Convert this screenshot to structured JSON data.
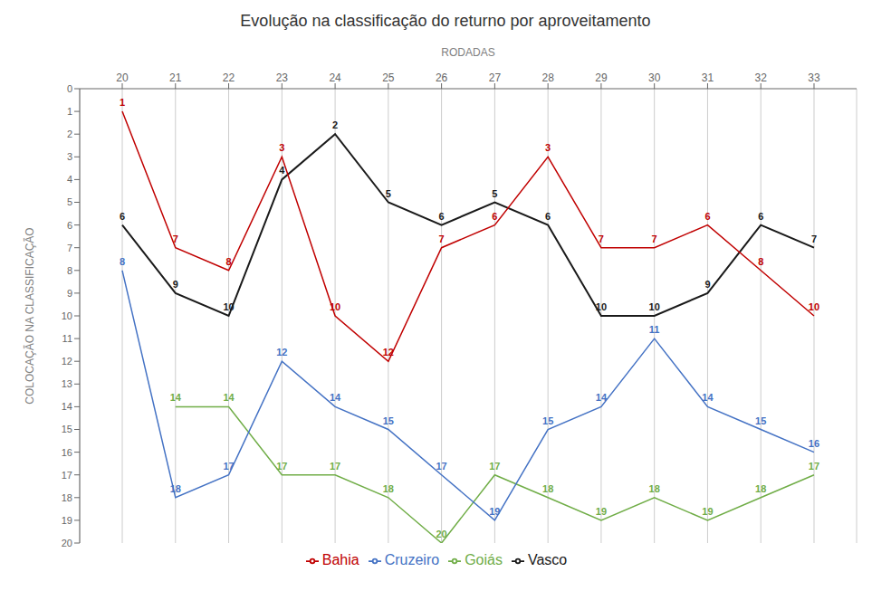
{
  "chart_data": {
    "type": "line",
    "title": "Evolução na classificação do returno por aproveitamento",
    "xlabel": "RODADAS",
    "ylabel": "COLOCAÇÃO NA CLASSIFICAÇÃO",
    "x": [
      20,
      21,
      22,
      23,
      24,
      25,
      26,
      27,
      28,
      29,
      30,
      31,
      32,
      33
    ],
    "series": [
      {
        "name": "Goiás",
        "color": "#70ad47",
        "values": [
          null,
          14,
          14,
          17,
          17,
          18,
          20,
          17,
          18,
          19,
          18,
          19,
          18,
          17
        ]
      },
      {
        "name": "Cruzeiro",
        "color": "#4472c4",
        "values": [
          8,
          18,
          17,
          12,
          14,
          15,
          17,
          19,
          15,
          14,
          11,
          14,
          15,
          16
        ]
      },
      {
        "name": "Vasco",
        "color": "#1a1a1a",
        "values": [
          6,
          9,
          10,
          4,
          2,
          5,
          6,
          5,
          6,
          10,
          10,
          9,
          6,
          7
        ]
      },
      {
        "name": "Bahia",
        "color": "#c00000",
        "values": [
          1,
          7,
          8,
          3,
          10,
          12,
          7,
          6,
          3,
          7,
          7,
          6,
          8,
          10
        ]
      }
    ],
    "xlim": [
      19.2,
      33.8
    ],
    "xticks": [
      20,
      21,
      22,
      23,
      24,
      25,
      26,
      27,
      28,
      29,
      30,
      31,
      32,
      33
    ],
    "ylim": [
      20,
      0
    ],
    "yticks": [
      0,
      1,
      2,
      3,
      4,
      5,
      6,
      7,
      8,
      9,
      10,
      11,
      12,
      13,
      14,
      15,
      16,
      17,
      18,
      19,
      20
    ],
    "grid": "x",
    "data_labels": true,
    "legend": "bottom"
  }
}
